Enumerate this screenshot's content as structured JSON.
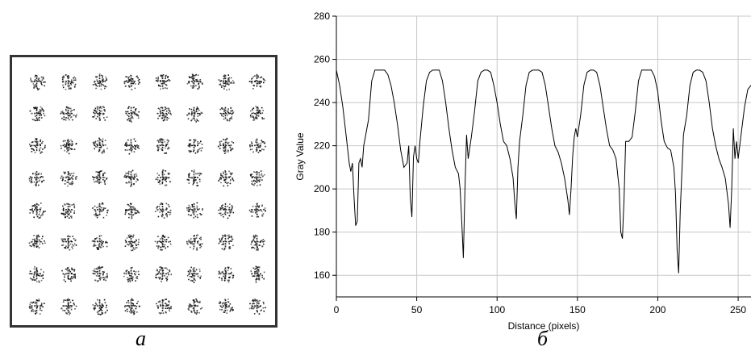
{
  "captions": {
    "a": "а",
    "b": "б"
  },
  "image_panel": {
    "grid_rows": 8,
    "grid_cols": 8,
    "description_icon": "dot-pattern-cell-icon"
  },
  "chart_data": {
    "type": "line",
    "title": "",
    "xlabel": "Distance (pixels)",
    "ylabel": "Gray Value",
    "xlim": [
      0,
      258
    ],
    "ylim": [
      150,
      280
    ],
    "xticks": [
      0,
      50,
      100,
      150,
      200,
      250
    ],
    "yticks": [
      160,
      180,
      200,
      220,
      240,
      260,
      280
    ],
    "grid": true,
    "line_color": "#000000",
    "series": [
      {
        "x": [
          0,
          2,
          4,
          6,
          8,
          9,
          10,
          11,
          12,
          13,
          14,
          15,
          16,
          17,
          18,
          20,
          22,
          24,
          26,
          28,
          30,
          32,
          34,
          36,
          38,
          40,
          42,
          44,
          45,
          46,
          47,
          48,
          49,
          50,
          51,
          52,
          54,
          56,
          58,
          60,
          62,
          64,
          66,
          68,
          70,
          72,
          74,
          76,
          77,
          78,
          79,
          80,
          81,
          82,
          84,
          86,
          88,
          90,
          92,
          94,
          96,
          98,
          100,
          102,
          104,
          106,
          108,
          110,
          111,
          112,
          113,
          114,
          116,
          118,
          120,
          122,
          124,
          126,
          128,
          130,
          132,
          134,
          136,
          138,
          140,
          142,
          144,
          145,
          146,
          147,
          148,
          149,
          150,
          152,
          154,
          156,
          158,
          160,
          162,
          164,
          166,
          168,
          170,
          172,
          174,
          176,
          177,
          178,
          179,
          180,
          182,
          184,
          186,
          188,
          190,
          192,
          194,
          196,
          198,
          200,
          202,
          204,
          206,
          208,
          210,
          211,
          212,
          213,
          214,
          216,
          218,
          220,
          222,
          224,
          226,
          228,
          230,
          232,
          234,
          236,
          238,
          240,
          242,
          244,
          245,
          246,
          247,
          248,
          249,
          250,
          252,
          254,
          256,
          258
        ],
        "y": [
          255,
          248,
          238,
          225,
          212,
          208,
          212,
          196,
          183,
          185,
          212,
          214,
          210,
          220,
          224,
          232,
          250,
          255,
          255,
          255,
          255,
          253,
          248,
          240,
          230,
          218,
          210,
          212,
          220,
          196,
          187,
          215,
          220,
          214,
          212,
          222,
          238,
          250,
          254,
          255,
          255,
          255,
          250,
          240,
          228,
          218,
          210,
          207,
          200,
          185,
          168,
          200,
          225,
          214,
          224,
          236,
          250,
          254,
          255,
          255,
          254,
          248,
          240,
          230,
          222,
          220,
          214,
          205,
          194,
          186,
          210,
          222,
          234,
          248,
          254,
          255,
          255,
          255,
          254,
          248,
          238,
          228,
          220,
          217,
          212,
          205,
          195,
          188,
          200,
          215,
          224,
          228,
          224,
          234,
          248,
          254,
          255,
          255,
          254,
          248,
          238,
          228,
          220,
          218,
          214,
          200,
          180,
          177,
          195,
          222,
          222,
          224,
          236,
          250,
          255,
          255,
          255,
          255,
          252,
          245,
          232,
          222,
          219,
          218,
          210,
          198,
          172,
          161,
          190,
          225,
          234,
          248,
          254,
          255,
          255,
          254,
          250,
          240,
          228,
          220,
          214,
          210,
          205,
          193,
          182,
          200,
          228,
          214,
          222,
          214,
          226,
          238,
          246,
          248
        ]
      }
    ]
  }
}
